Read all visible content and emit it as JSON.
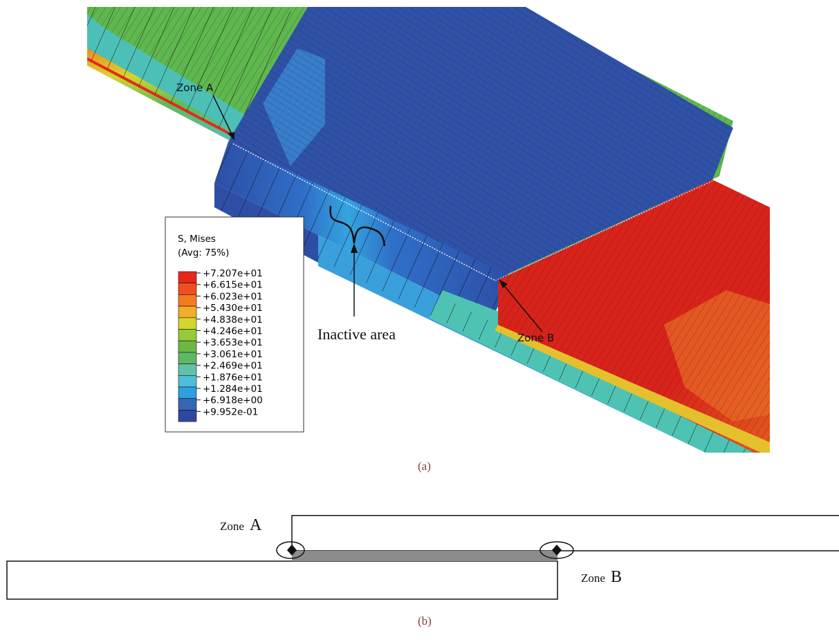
{
  "panel_a": {
    "caption": "(a)",
    "legend": {
      "title_line1": "S, Mises",
      "title_line2": "(Avg: 75%)",
      "entries": [
        {
          "label": "+7.207e+01",
          "color": "#e8271c"
        },
        {
          "label": "+6.615e+01",
          "color": "#ef4f1f"
        },
        {
          "label": "+6.023e+01",
          "color": "#f47a20"
        },
        {
          "label": "+5.430e+01",
          "color": "#f2ad2b"
        },
        {
          "label": "+4.838e+01",
          "color": "#d4d52e"
        },
        {
          "label": "+4.246e+01",
          "color": "#98c83c"
        },
        {
          "label": "+3.653e+01",
          "color": "#6db845"
        },
        {
          "label": "+3.061e+01",
          "color": "#5cb865"
        },
        {
          "label": "+2.469e+01",
          "color": "#62c1a8"
        },
        {
          "label": "+1.876e+01",
          "color": "#4fbed8"
        },
        {
          "label": "+1.284e+01",
          "color": "#2f9fe0"
        },
        {
          "label": "+6.918e+00",
          "color": "#3566b4"
        },
        {
          "label": "+9.952e-01",
          "color": "#2e47a0"
        }
      ]
    },
    "labels": {
      "zone_a": "Zone A",
      "zone_b": "Zone B",
      "inactive_area": "Inactive area"
    }
  },
  "panel_b": {
    "caption": "(b)",
    "zone_a_word": "Zone",
    "zone_a_letter": "A",
    "zone_b_word": "Zone",
    "zone_b_letter": "B"
  },
  "colors": {
    "stress_high": "#d9231a",
    "stress_mid": "#5fbb56",
    "stress_low": "#2e4ea6",
    "caption": "#8b3a3a",
    "inactive_strip": "#8c8c8c"
  }
}
